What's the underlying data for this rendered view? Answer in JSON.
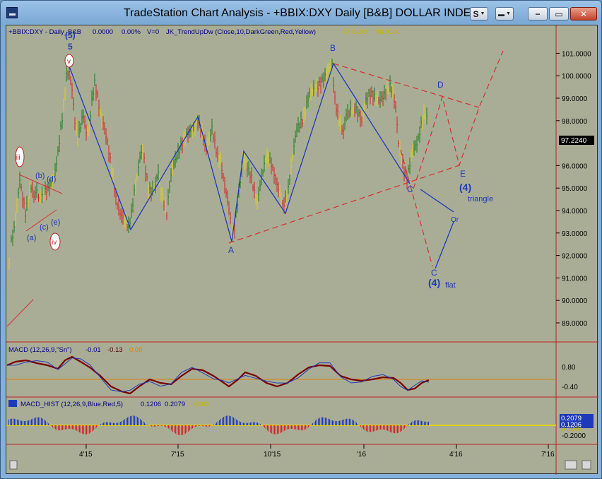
{
  "window": {
    "title": "TradeStation Chart Analysis - +BBIX:DXY Daily [B&B] DOLLAR INDEX",
    "buttons": {
      "s_label": "S",
      "menu_label": "",
      "minimize": "−",
      "restore": "▭",
      "close": "✕"
    }
  },
  "price_pane": {
    "header_symbol": "+BBIX:DXY - Daily_B&B",
    "header_value1": "0.0000",
    "header_value2": "0.00%",
    "header_v": "V=0",
    "header_indicator": "JK_TrendUpDw (Close,10,DarkGreen,Red,Yellow)",
    "header_ind_val1": "97.0190",
    "header_ind_val2": "98.0300",
    "last_price": "97.2240",
    "y_ticks": [
      "101.0000",
      "100.0000",
      "99.0000",
      "98.0000",
      "96.0000",
      "95.0000",
      "94.0000",
      "93.0000",
      "92.0000",
      "91.0000",
      "90.0000",
      "89.0000"
    ],
    "wave_labels": {
      "five_paren": "(5)",
      "five": "5",
      "v": "v",
      "iii": "iii",
      "iv": "iv",
      "a": "(a)",
      "b": "(b)",
      "c": "(c)",
      "d": "(d)",
      "e": "(e)",
      "A": "A",
      "B": "B",
      "C1": "C",
      "D": "D",
      "E": "E",
      "four1": "(4)",
      "triangle": "triangle",
      "or": "Or",
      "C2": "C",
      "four2": "(4)",
      "flat": "flat"
    }
  },
  "macd_pane": {
    "header": "MACD (12,26,9,\"Sn\")",
    "val1": "-0.01",
    "val2": "-0.13",
    "val3": "0.00",
    "y_ticks": [
      "0.80",
      "-0.40"
    ]
  },
  "hist_pane": {
    "header": "MACD_HIST (12,26,9,Blue,Red,5)",
    "val1": "0.1206",
    "val2": "0.2079",
    "val3": "0.0000",
    "y_ticks": [
      "0.2079",
      "0.1206",
      "0.0000",
      "-0.2000"
    ]
  },
  "x_axis": {
    "ticks": [
      "4'15",
      "7'15",
      "10'15",
      "'16",
      "4'16",
      "7'16"
    ]
  },
  "colors": {
    "bg": "#a9ad96",
    "up": "#1a7a1a",
    "down": "#d32424",
    "neutral": "#e0d11b",
    "wave": "#1f3ab8",
    "trend": "#d43030"
  }
}
